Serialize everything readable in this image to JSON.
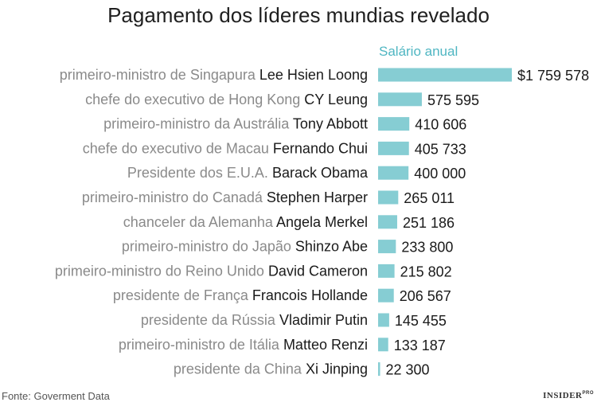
{
  "title": "Pagamento dos líderes mundias revelado",
  "series_label": "Salário anual",
  "source": "Fonte: Goverment Data",
  "brand": {
    "main": "INSIDER",
    "sup": "PRO"
  },
  "colors": {
    "bar": "#86cdd3",
    "series_label": "#4fb6c2",
    "role_text": "#8a8a8a"
  },
  "chart_data": {
    "type": "bar",
    "orientation": "horizontal",
    "title": "Pagamento dos líderes mundias revelado",
    "series": [
      {
        "name": "Salário anual",
        "values": [
          1759578,
          575595,
          410606,
          405733,
          400000,
          265011,
          251186,
          233800,
          215802,
          206567,
          145455,
          133187,
          22300
        ]
      }
    ],
    "rows": [
      {
        "role": "primeiro-ministro de Singapura",
        "name": "Lee Hsien Loong",
        "value": 1759578,
        "label": "$1 759 578"
      },
      {
        "role": "chefe do executivo de Hong Kong",
        "name": "CY Leung",
        "value": 575595,
        "label": "575 595"
      },
      {
        "role": "primeiro-ministro da Austrália",
        "name": "Tony Abbott",
        "value": 410606,
        "label": "410 606"
      },
      {
        "role": "chefe do executivo de Macau",
        "name": "Fernando Chui",
        "value": 405733,
        "label": "405 733"
      },
      {
        "role": "Presidente dos E.U.A.",
        "name": "Barack Obama",
        "value": 400000,
        "label": "400 000"
      },
      {
        "role": "primeiro-ministro do Canadá",
        "name": "Stephen Harper",
        "value": 265011,
        "label": "265 011"
      },
      {
        "role": "chanceler da Alemanha",
        "name": "Angela Merkel",
        "value": 251186,
        "label": "251 186"
      },
      {
        "role": "primeiro-ministro do Japão",
        "name": "Shinzo Abe",
        "value": 233800,
        "label": "233 800"
      },
      {
        "role": "primeiro-ministro do Reino Unido",
        "name": "David Cameron",
        "value": 215802,
        "label": "215 802"
      },
      {
        "role": "presidente de França",
        "name": "Francois Hollande",
        "value": 206567,
        "label": "206 567"
      },
      {
        "role": "presidente da Rússia",
        "name": "Vladimir Putin",
        "value": 145455,
        "label": "145 455"
      },
      {
        "role": "primeiro-ministro de Itália",
        "name": "Matteo Renzi",
        "value": 133187,
        "label": "133 187"
      },
      {
        "role": "presidente da China",
        "name": "Xi Jinping",
        "value": 22300,
        "label": "22 300"
      }
    ],
    "xlim": [
      0,
      1759578
    ],
    "grid": false,
    "legend": "none"
  }
}
